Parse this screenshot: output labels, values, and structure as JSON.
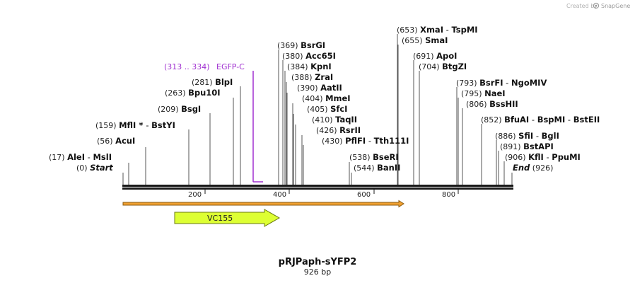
{
  "credit": {
    "prefix": "Created by",
    "brand": "SnapGene"
  },
  "primer": {
    "range": "(313 .. 334)",
    "name": "EGFP-C",
    "color": "#a030d0"
  },
  "sites": [
    {
      "pos": "(17)",
      "parts": [
        {
          "t": "AleI",
          "k": "name"
        },
        {
          "t": " - ",
          "k": "sep"
        },
        {
          "t": "MslI",
          "k": "name"
        }
      ]
    },
    {
      "pos": "(0)",
      "parts": [
        {
          "t": "Start",
          "k": "em"
        }
      ]
    },
    {
      "pos": "(56)",
      "parts": [
        {
          "t": "AcuI",
          "k": "name"
        }
      ]
    },
    {
      "pos": "(159)",
      "parts": [
        {
          "t": "MflI",
          "k": "name"
        },
        {
          "t": " * ",
          "k": "star"
        },
        {
          "t": "- ",
          "k": "sep"
        },
        {
          "t": "BstYI",
          "k": "name"
        }
      ]
    },
    {
      "pos": "(209)",
      "parts": [
        {
          "t": "BsgI",
          "k": "name"
        }
      ]
    },
    {
      "pos": "(263)",
      "parts": [
        {
          "t": "Bpu10I",
          "k": "name"
        }
      ]
    },
    {
      "pos": "(281)",
      "parts": [
        {
          "t": "BlpI",
          "k": "name"
        }
      ]
    },
    {
      "pos": "(369)",
      "parts": [
        {
          "t": "BsrGI",
          "k": "name"
        }
      ]
    },
    {
      "pos": "(380)",
      "parts": [
        {
          "t": "Acc65I",
          "k": "name"
        }
      ]
    },
    {
      "pos": "(384)",
      "parts": [
        {
          "t": "KpnI",
          "k": "name"
        }
      ]
    },
    {
      "pos": "(388)",
      "parts": [
        {
          "t": "ZraI",
          "k": "name"
        }
      ]
    },
    {
      "pos": "(390)",
      "parts": [
        {
          "t": "AatII",
          "k": "name"
        }
      ]
    },
    {
      "pos": "(404)",
      "parts": [
        {
          "t": "MmeI",
          "k": "name"
        }
      ]
    },
    {
      "pos": "(405)",
      "parts": [
        {
          "t": "SfcI",
          "k": "name"
        }
      ]
    },
    {
      "pos": "(410)",
      "parts": [
        {
          "t": "TaqII",
          "k": "name"
        }
      ]
    },
    {
      "pos": "(426)",
      "parts": [
        {
          "t": "RsrII",
          "k": "name"
        }
      ]
    },
    {
      "pos": "(430)",
      "parts": [
        {
          "t": "PflFI",
          "k": "name"
        },
        {
          "t": " - ",
          "k": "sep"
        },
        {
          "t": "Tth111I",
          "k": "name"
        }
      ]
    },
    {
      "pos": "(538)",
      "parts": [
        {
          "t": "BseRI",
          "k": "name"
        }
      ]
    },
    {
      "pos": "(544)",
      "parts": [
        {
          "t": "BanII",
          "k": "name"
        }
      ]
    },
    {
      "pos": "(653)",
      "parts": [
        {
          "t": "XmaI",
          "k": "name"
        },
        {
          "t": " - ",
          "k": "sep"
        },
        {
          "t": "TspMI",
          "k": "name"
        }
      ]
    },
    {
      "pos": "(655)",
      "parts": [
        {
          "t": "SmaI",
          "k": "name"
        }
      ]
    },
    {
      "pos": "(691)",
      "parts": [
        {
          "t": "ApoI",
          "k": "name"
        }
      ]
    },
    {
      "pos": "(704)",
      "parts": [
        {
          "t": "BtgZI",
          "k": "name"
        }
      ]
    },
    {
      "pos": "(793)",
      "parts": [
        {
          "t": "BsrFI",
          "k": "name"
        },
        {
          "t": " - ",
          "k": "sep"
        },
        {
          "t": "NgoMIV",
          "k": "name"
        }
      ]
    },
    {
      "pos": "(795)",
      "parts": [
        {
          "t": "NaeI",
          "k": "name"
        }
      ]
    },
    {
      "pos": "(806)",
      "parts": [
        {
          "t": "BssHII",
          "k": "name"
        }
      ]
    },
    {
      "pos": "(852)",
      "parts": [
        {
          "t": "BfuAI",
          "k": "name"
        },
        {
          "t": " - ",
          "k": "sep"
        },
        {
          "t": "BspMI",
          "k": "name"
        },
        {
          "t": " - ",
          "k": "sep"
        },
        {
          "t": "BstEII",
          "k": "name"
        }
      ]
    },
    {
      "pos": "(886)",
      "parts": [
        {
          "t": "SfiI",
          "k": "name"
        },
        {
          "t": " - ",
          "k": "sep"
        },
        {
          "t": "BglI",
          "k": "name"
        }
      ]
    },
    {
      "pos": "(891)",
      "parts": [
        {
          "t": "BstAPI",
          "k": "name"
        }
      ]
    },
    {
      "pos": "(906)",
      "parts": [
        {
          "t": "KflI",
          "k": "name"
        },
        {
          "t": " - ",
          "k": "sep"
        },
        {
          "t": "PpuMI",
          "k": "name"
        }
      ]
    },
    {
      "pos": "(926)",
      "parts": [
        {
          "t": "End",
          "k": "em"
        }
      ]
    }
  ],
  "axis": {
    "ticks": [
      "200",
      "400",
      "600",
      "800"
    ],
    "colors": {
      "backbone": "#1a1a1a"
    }
  },
  "features": {
    "orf": {
      "color": "#f0a030",
      "outline": "#8a5a10"
    },
    "vc155": {
      "label": "VC155",
      "color": "#ddff33",
      "outline": "#6a7a10"
    }
  },
  "title": {
    "name": "pRJPaph-sYFP2",
    "length": "926 bp"
  }
}
